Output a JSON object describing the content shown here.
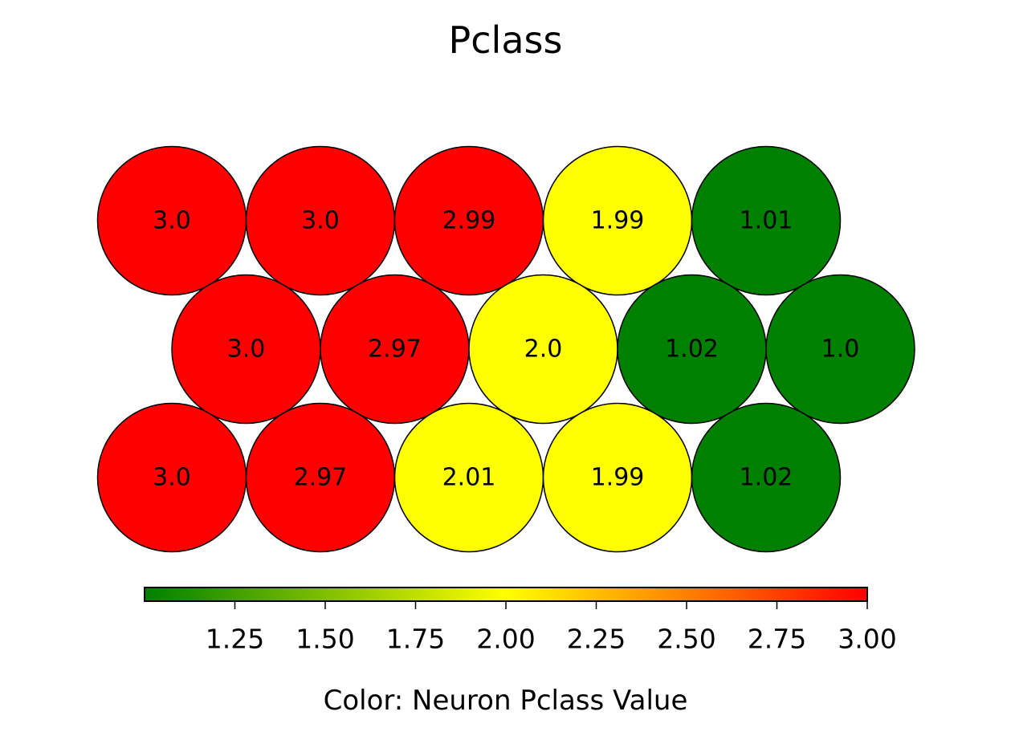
{
  "chart_data": {
    "type": "heatmap",
    "subtype": "hexagonal-som",
    "title": "Pclass",
    "rows": [
      [
        3.0,
        3.0,
        2.99,
        1.99,
        1.01
      ],
      [
        3.0,
        2.97,
        2.0,
        1.02,
        1.0
      ],
      [
        3.0,
        2.97,
        2.01,
        1.99,
        1.02
      ]
    ],
    "labels": [
      [
        "3.0",
        "3.0",
        "2.99",
        "1.99",
        "1.01"
      ],
      [
        "3.0",
        "2.97",
        "2.0",
        "1.02",
        "1.0"
      ],
      [
        "3.0",
        "2.97",
        "2.01",
        "1.99",
        "1.02"
      ]
    ],
    "colorbar": {
      "label": "Color: Neuron Pclass Value",
      "range": [
        1.0,
        3.0
      ],
      "ticks": [
        1.25,
        1.5,
        1.75,
        2.0,
        2.25,
        2.5,
        2.75,
        3.0
      ],
      "tick_labels": [
        "1.25",
        "1.50",
        "1.75",
        "2.00",
        "2.25",
        "2.50",
        "2.75",
        "3.00"
      ],
      "colormap": [
        "#008000",
        "#ffff00",
        "#ff0000"
      ],
      "orientation": "horizontal",
      "placement": "bottom"
    },
    "grid": false
  }
}
